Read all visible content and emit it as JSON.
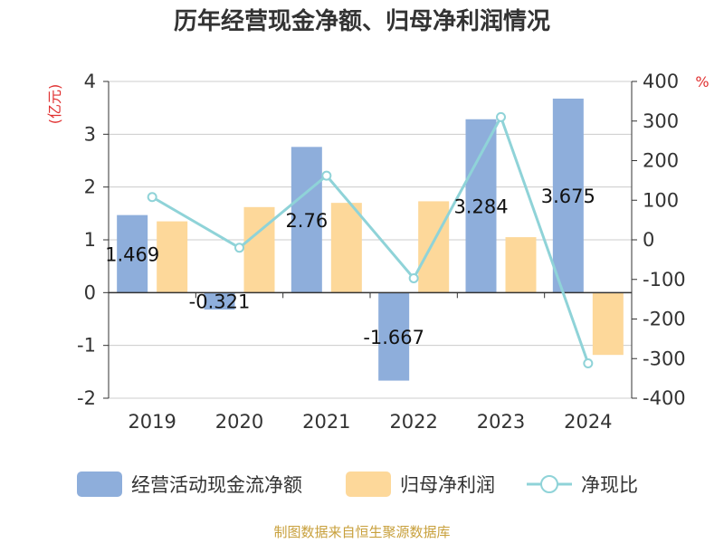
{
  "chart_data": {
    "type": "bar",
    "title": "历年经营现金净额、归母净利润情况",
    "categories": [
      "2019",
      "2020",
      "2021",
      "2022",
      "2023",
      "2024"
    ],
    "series": [
      {
        "name": "经营活动现金流净额",
        "type": "bar",
        "axis": "left",
        "color": "#8eaedb",
        "values": [
          1.469,
          -0.321,
          2.76,
          -1.667,
          3.284,
          3.675
        ],
        "labels": [
          "1.469",
          "-0.321",
          "2.76",
          "-1.667",
          "3.284",
          "3.675"
        ]
      },
      {
        "name": "归母净利润",
        "type": "bar",
        "axis": "left",
        "color": "#fdd89a",
        "values": [
          1.35,
          1.62,
          1.7,
          1.73,
          1.05,
          -1.18
        ]
      },
      {
        "name": "净现比",
        "type": "line",
        "axis": "right",
        "color": "#8fd3d8",
        "values": [
          108,
          -20,
          162,
          -97,
          310,
          -312
        ]
      }
    ],
    "y_left": {
      "unit": "(亿元)",
      "ylim": [
        -2,
        4
      ],
      "ticks": [
        "4",
        "3",
        "2",
        "1",
        "0",
        "-1",
        "-2"
      ]
    },
    "y_right": {
      "unit": "%",
      "ylim": [
        -400,
        400
      ],
      "ticks": [
        "400",
        "300",
        "200",
        "100",
        "0",
        "-100",
        "-200",
        "-300",
        "-400"
      ]
    },
    "grid": true,
    "legend_position": "bottom"
  },
  "source_note": "制图数据来自恒生聚源数据库"
}
